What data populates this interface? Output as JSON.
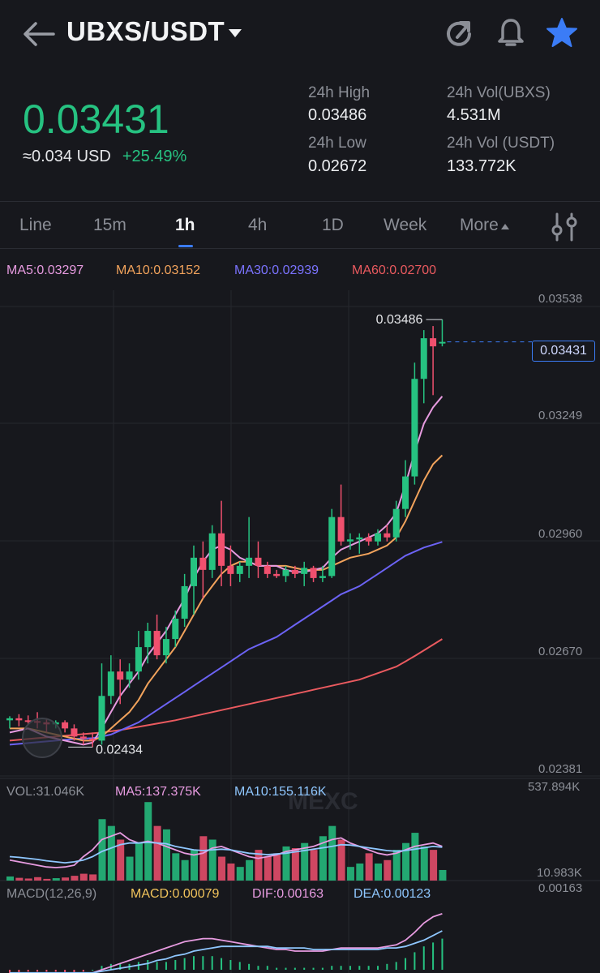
{
  "header": {
    "pair": "UBXS/USDT"
  },
  "icons": {
    "back": "arrow-left-icon",
    "refresh": "refresh-icon",
    "alert": "bell-icon",
    "favorite": "star-icon",
    "settings": "sliders-icon"
  },
  "ticker": {
    "last_price": "0.03431",
    "usd_equiv": "≈0.034 USD",
    "change": "+25.49%",
    "high_label": "24h High",
    "high_value": "0.03486",
    "low_label": "24h Low",
    "low_value": "0.02672",
    "vol_base_label": "24h Vol(UBXS)",
    "vol_base_value": "4.531M",
    "vol_quote_label": "24h Vol (USDT)",
    "vol_quote_value": "133.772K"
  },
  "tabs": [
    {
      "label": "Line"
    },
    {
      "label": "15m"
    },
    {
      "label": "1h"
    },
    {
      "label": "4h"
    },
    {
      "label": "1D"
    },
    {
      "label": "Week"
    },
    {
      "label": "More"
    }
  ],
  "active_tab": "1h",
  "indicators": {
    "ma5": "MA5:0.03297",
    "ma10": "MA10:0.03152",
    "ma30": "MA30:0.02939",
    "ma60": "MA60:0.02700"
  },
  "colors": {
    "up": "#26c281",
    "down": "#f0506e",
    "ma5": "#e79be0",
    "ma10": "#f2a35c",
    "ma30": "#6c63f5",
    "ma60": "#ea5a5f",
    "vol_ma10": "#8fc7ff",
    "accent": "#3b7cf6"
  },
  "price_axis": [
    "0.03538",
    "0.03249",
    "0.02960",
    "0.02670",
    "0.02381"
  ],
  "chart_annotations": {
    "high_marker": "0.03486",
    "low_marker": "0.02434",
    "last_price_tag": "0.03431",
    "watermark": "MEXC"
  },
  "volume": {
    "vol": "VOL:31.046K",
    "ma5": "MA5:137.375K",
    "ma10": "MA10:155.116K",
    "axis_top": "537.894K",
    "axis_bottom": "10.983K"
  },
  "macd": {
    "params": "MACD(12,26,9)",
    "macd": "MACD:0.00079",
    "dif": "DIF:0.00163",
    "dea": "DEA:0.00123",
    "axis_top": "0.00163"
  },
  "chart_data": {
    "type": "candlestick",
    "ylim": [
      0.02381,
      0.03538
    ],
    "candles": [
      {
        "o": 0.025,
        "h": 0.0251,
        "l": 0.0248,
        "c": 0.02505
      },
      {
        "o": 0.02505,
        "h": 0.02515,
        "l": 0.02485,
        "c": 0.025
      },
      {
        "o": 0.025,
        "h": 0.02512,
        "l": 0.0249,
        "c": 0.02498
      },
      {
        "o": 0.02498,
        "h": 0.0252,
        "l": 0.0248,
        "c": 0.02495
      },
      {
        "o": 0.02495,
        "h": 0.02505,
        "l": 0.0247,
        "c": 0.0249
      },
      {
        "o": 0.0249,
        "h": 0.025,
        "l": 0.0248,
        "c": 0.02495
      },
      {
        "o": 0.02495,
        "h": 0.025,
        "l": 0.0247,
        "c": 0.0248
      },
      {
        "o": 0.0248,
        "h": 0.0249,
        "l": 0.0245,
        "c": 0.0246
      },
      {
        "o": 0.0246,
        "h": 0.0247,
        "l": 0.0244,
        "c": 0.02455
      },
      {
        "o": 0.02455,
        "h": 0.0247,
        "l": 0.02434,
        "c": 0.0245
      },
      {
        "o": 0.0245,
        "h": 0.0264,
        "l": 0.0244,
        "c": 0.0256
      },
      {
        "o": 0.0256,
        "h": 0.0266,
        "l": 0.0254,
        "c": 0.0262
      },
      {
        "o": 0.0262,
        "h": 0.0265,
        "l": 0.0254,
        "c": 0.026
      },
      {
        "o": 0.026,
        "h": 0.0264,
        "l": 0.0258,
        "c": 0.0262
      },
      {
        "o": 0.0262,
        "h": 0.0272,
        "l": 0.026,
        "c": 0.0268
      },
      {
        "o": 0.0268,
        "h": 0.0274,
        "l": 0.0264,
        "c": 0.0272
      },
      {
        "o": 0.0272,
        "h": 0.0276,
        "l": 0.0265,
        "c": 0.0266
      },
      {
        "o": 0.0266,
        "h": 0.0273,
        "l": 0.0264,
        "c": 0.027
      },
      {
        "o": 0.027,
        "h": 0.0277,
        "l": 0.0268,
        "c": 0.0275
      },
      {
        "o": 0.0275,
        "h": 0.0286,
        "l": 0.0273,
        "c": 0.0283
      },
      {
        "o": 0.0283,
        "h": 0.0293,
        "l": 0.0276,
        "c": 0.029
      },
      {
        "o": 0.029,
        "h": 0.0294,
        "l": 0.028,
        "c": 0.0287
      },
      {
        "o": 0.0287,
        "h": 0.0298,
        "l": 0.0285,
        "c": 0.0296
      },
      {
        "o": 0.0296,
        "h": 0.0304,
        "l": 0.0283,
        "c": 0.0288
      },
      {
        "o": 0.0288,
        "h": 0.0293,
        "l": 0.0283,
        "c": 0.0286
      },
      {
        "o": 0.0286,
        "h": 0.0289,
        "l": 0.0284,
        "c": 0.0288
      },
      {
        "o": 0.0288,
        "h": 0.03,
        "l": 0.0285,
        "c": 0.029
      },
      {
        "o": 0.029,
        "h": 0.0294,
        "l": 0.0285,
        "c": 0.0288
      },
      {
        "o": 0.0288,
        "h": 0.0289,
        "l": 0.0285,
        "c": 0.0286
      },
      {
        "o": 0.0286,
        "h": 0.0287,
        "l": 0.0285,
        "c": 0.02855
      },
      {
        "o": 0.02855,
        "h": 0.0288,
        "l": 0.0284,
        "c": 0.0287
      },
      {
        "o": 0.0287,
        "h": 0.0288,
        "l": 0.0285,
        "c": 0.0286
      },
      {
        "o": 0.0286,
        "h": 0.0289,
        "l": 0.0283,
        "c": 0.02875
      },
      {
        "o": 0.02875,
        "h": 0.0288,
        "l": 0.0284,
        "c": 0.0285
      },
      {
        "o": 0.0285,
        "h": 0.0288,
        "l": 0.0284,
        "c": 0.02855
      },
      {
        "o": 0.02855,
        "h": 0.0302,
        "l": 0.0285,
        "c": 0.03
      },
      {
        "o": 0.03,
        "h": 0.0308,
        "l": 0.0293,
        "c": 0.0294
      },
      {
        "o": 0.0294,
        "h": 0.0296,
        "l": 0.0292,
        "c": 0.02945
      },
      {
        "o": 0.02945,
        "h": 0.0296,
        "l": 0.0291,
        "c": 0.0295
      },
      {
        "o": 0.0295,
        "h": 0.0296,
        "l": 0.0293,
        "c": 0.0294
      },
      {
        "o": 0.0294,
        "h": 0.0297,
        "l": 0.0293,
        "c": 0.0296
      },
      {
        "o": 0.0296,
        "h": 0.0298,
        "l": 0.0294,
        "c": 0.0295
      },
      {
        "o": 0.0295,
        "h": 0.0304,
        "l": 0.0294,
        "c": 0.0302
      },
      {
        "o": 0.0302,
        "h": 0.0314,
        "l": 0.03,
        "c": 0.031
      },
      {
        "o": 0.031,
        "h": 0.0338,
        "l": 0.0308,
        "c": 0.0334
      },
      {
        "o": 0.0334,
        "h": 0.0346,
        "l": 0.0328,
        "c": 0.0344
      },
      {
        "o": 0.0344,
        "h": 0.0347,
        "l": 0.033,
        "c": 0.0342
      },
      {
        "o": 0.03431,
        "h": 0.03486,
        "l": 0.0342,
        "c": 0.03431
      }
    ],
    "ma5": [
      0.0247,
      0.02475,
      0.0248,
      0.0247,
      0.0246,
      0.02455,
      0.0245,
      0.02445,
      0.0244,
      0.02445,
      0.0248,
      0.0252,
      0.0256,
      0.0259,
      0.0262,
      0.0266,
      0.0269,
      0.0272,
      0.0276,
      0.028,
      0.0285,
      0.0289,
      0.0292,
      0.0293,
      0.0292,
      0.029,
      0.0289,
      0.0288,
      0.0288,
      0.0288,
      0.0287,
      0.02865,
      0.02865,
      0.0287,
      0.02875,
      0.029,
      0.0292,
      0.0293,
      0.0294,
      0.0295,
      0.0296,
      0.0298,
      0.0301,
      0.0308,
      0.0316,
      0.0323,
      0.0327,
      0.03297
    ],
    "ma10": [
      0.0248,
      0.0248,
      0.0248,
      0.02475,
      0.0247,
      0.02465,
      0.0246,
      0.02455,
      0.0245,
      0.0245,
      0.0246,
      0.0248,
      0.025,
      0.0252,
      0.0255,
      0.0259,
      0.0262,
      0.0265,
      0.0268,
      0.0272,
      0.0276,
      0.028,
      0.0283,
      0.0286,
      0.0288,
      0.0289,
      0.0289,
      0.0288,
      0.0288,
      0.0288,
      0.0288,
      0.02875,
      0.0287,
      0.0287,
      0.0287,
      0.0288,
      0.0289,
      0.029,
      0.02905,
      0.0291,
      0.0292,
      0.0293,
      0.0295,
      0.0299,
      0.0304,
      0.0309,
      0.0313,
      0.03152
    ],
    "ma30": [
      0.0244,
      0.02442,
      0.02444,
      0.02446,
      0.02448,
      0.0245,
      0.02452,
      0.02454,
      0.02455,
      0.02456,
      0.0246,
      0.02465,
      0.02475,
      0.02485,
      0.02495,
      0.0251,
      0.02525,
      0.0254,
      0.02555,
      0.0257,
      0.02585,
      0.026,
      0.02615,
      0.0263,
      0.02645,
      0.0266,
      0.02675,
      0.02685,
      0.02695,
      0.02705,
      0.0272,
      0.02735,
      0.0275,
      0.02765,
      0.0278,
      0.02795,
      0.0281,
      0.0282,
      0.0283,
      0.02845,
      0.0286,
      0.02875,
      0.0289,
      0.02905,
      0.02915,
      0.02925,
      0.02932,
      0.02939
    ],
    "ma60": [
      0.0245,
      0.02452,
      0.02454,
      0.02456,
      0.02458,
      0.0246,
      0.02462,
      0.02464,
      0.02466,
      0.02468,
      0.0247,
      0.02473,
      0.02476,
      0.0248,
      0.02484,
      0.02488,
      0.02492,
      0.02496,
      0.025,
      0.02505,
      0.0251,
      0.02515,
      0.0252,
      0.02525,
      0.0253,
      0.02535,
      0.0254,
      0.02545,
      0.0255,
      0.02555,
      0.0256,
      0.02565,
      0.0257,
      0.02575,
      0.0258,
      0.02585,
      0.0259,
      0.02595,
      0.026,
      0.02608,
      0.02616,
      0.02624,
      0.02632,
      0.02645,
      0.02658,
      0.02672,
      0.02686,
      0.027
    ],
    "volumes": [
      12,
      8,
      6,
      10,
      5,
      7,
      9,
      14,
      20,
      18,
      180,
      160,
      120,
      70,
      110,
      230,
      160,
      150,
      80,
      60,
      90,
      130,
      120,
      70,
      50,
      40,
      60,
      90,
      70,
      80,
      100,
      95,
      110,
      90,
      130,
      160,
      120,
      40,
      50,
      80,
      50,
      60,
      90,
      110,
      140,
      100,
      90,
      31
    ],
    "vol_ma5_line": [
      60,
      55,
      50,
      45,
      40,
      38,
      40,
      45,
      70,
      90,
      120,
      130,
      140,
      120,
      110,
      115,
      110,
      100,
      90,
      80,
      75,
      80,
      95,
      100,
      90,
      80,
      70,
      65,
      70,
      75,
      85,
      90,
      95,
      100,
      110,
      120,
      125,
      110,
      100,
      90,
      80,
      75,
      80,
      90,
      100,
      105,
      110,
      100
    ],
    "vol_ma10_line": [
      70,
      68,
      65,
      62,
      58,
      55,
      52,
      55,
      60,
      70,
      85,
      95,
      105,
      110,
      110,
      112,
      110,
      108,
      100,
      95,
      90,
      88,
      90,
      92,
      90,
      85,
      80,
      78,
      76,
      78,
      80,
      84,
      88,
      92,
      96,
      100,
      105,
      104,
      100,
      96,
      92,
      88,
      86,
      88,
      92,
      96,
      100,
      98
    ],
    "macd_hist": [
      -2,
      -2,
      -1,
      -1,
      -1,
      -1,
      -2,
      -2,
      -1,
      0,
      2,
      3,
      3,
      3,
      4,
      5,
      4,
      4,
      5,
      6,
      7,
      7,
      7,
      6,
      5,
      4,
      3,
      2,
      2,
      1,
      1,
      1,
      1,
      1,
      1,
      2,
      2,
      2,
      2,
      2,
      2,
      3,
      4,
      6,
      9,
      12,
      14,
      16
    ],
    "dif_line": [
      -3,
      -3,
      -3,
      -3,
      -3,
      -3,
      -3,
      -3,
      -3,
      -2,
      0,
      2,
      4,
      6,
      8,
      10,
      12,
      14,
      16,
      18,
      19,
      20,
      20,
      19,
      18,
      17,
      16,
      15,
      14,
      13,
      13,
      12,
      12,
      12,
      12,
      13,
      14,
      14,
      14,
      14,
      14,
      15,
      16,
      19,
      24,
      30,
      34,
      36
    ],
    "dea_line": [
      -2,
      -2,
      -2,
      -2,
      -2,
      -2,
      -2,
      -2,
      -2,
      -2,
      -1,
      0,
      1,
      2,
      3,
      4,
      6,
      7,
      9,
      10,
      12,
      13,
      14,
      15,
      15,
      15,
      15,
      15,
      15,
      14,
      14,
      14,
      14,
      13,
      13,
      13,
      13,
      13,
      13,
      13,
      13,
      14,
      14,
      15,
      17,
      19,
      22,
      25
    ]
  }
}
